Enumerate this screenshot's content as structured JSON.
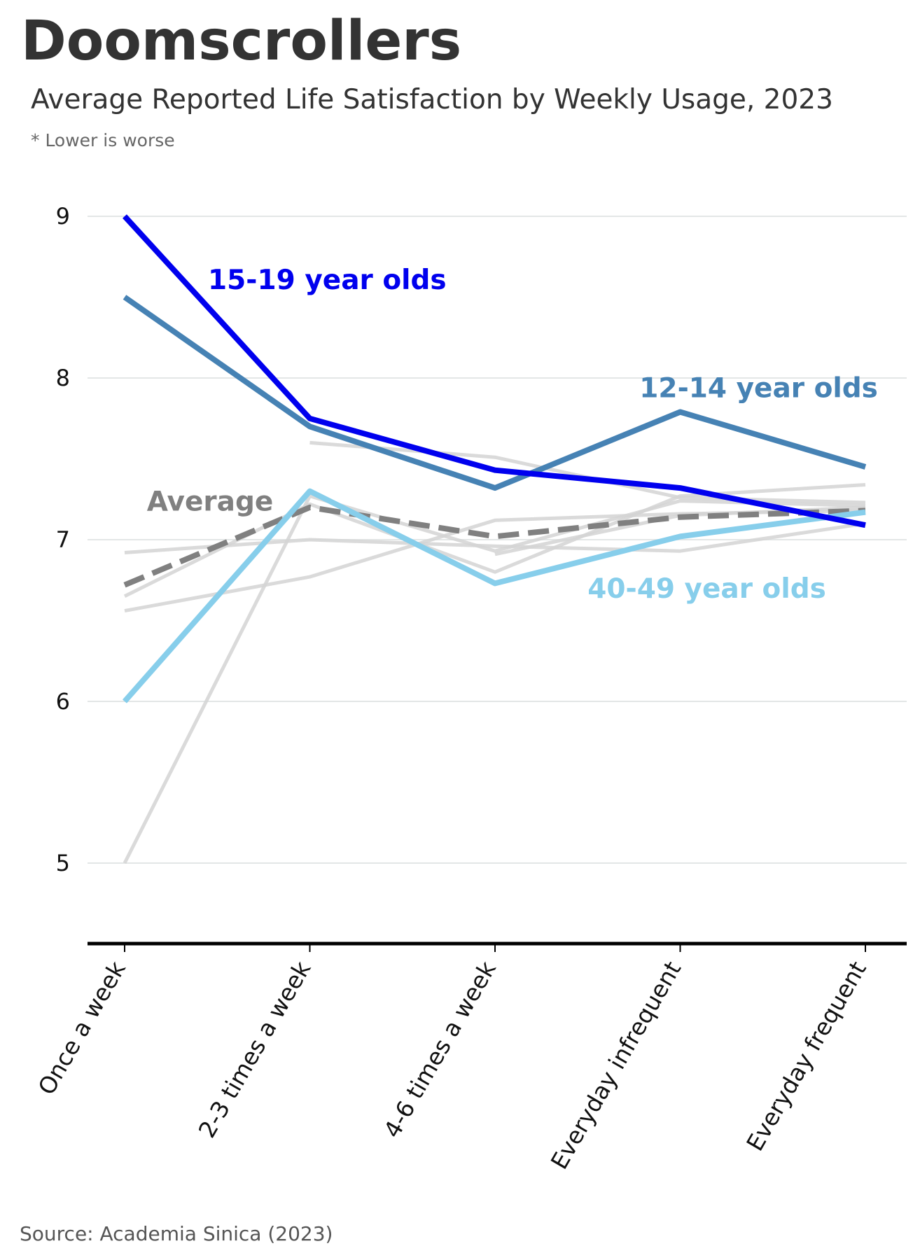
{
  "title": "Doomscrollers",
  "subtitle": "Average Reported Life Satisfaction by Weekly Usage, 2023",
  "note": "* Lower is worse",
  "source": "Source: Academia Sinica (2023)",
  "chart_data": {
    "type": "line",
    "categories": [
      "Once a week",
      "2-3 times a week",
      "4-6 times a week",
      "Everyday infrequent",
      "Everyday frequent"
    ],
    "ylim": [
      4.5,
      9.0
    ],
    "yticks": [
      5,
      6,
      7,
      8,
      9
    ],
    "grid": true,
    "series": [
      {
        "name": "15-19 year olds",
        "values": [
          9.0,
          7.75,
          7.43,
          7.32,
          7.09
        ],
        "color": "#0000ee",
        "style": "highlight"
      },
      {
        "name": "12-14 year olds",
        "values": [
          8.5,
          7.7,
          7.32,
          7.79,
          7.45
        ],
        "color": "#4682b4",
        "style": "highlight"
      },
      {
        "name": "40-49 year olds",
        "values": [
          6.0,
          7.3,
          6.73,
          7.02,
          7.17
        ],
        "color": "#87ceeb",
        "style": "highlight"
      },
      {
        "name": "Average",
        "values": [
          6.72,
          7.2,
          7.02,
          7.14,
          7.18
        ],
        "color": "#808080",
        "style": "dashed"
      },
      {
        "values": [
          5.0,
          7.27,
          6.93,
          7.24,
          7.21
        ],
        "color": "#d3d3d3",
        "style": "background"
      },
      {
        "values": [
          6.92,
          7.0,
          6.96,
          6.93,
          7.1
        ],
        "color": "#d3d3d3",
        "style": "background"
      },
      {
        "values": [
          6.56,
          6.77,
          7.12,
          7.16,
          7.18
        ],
        "color": "#d3d3d3",
        "style": "background"
      },
      {
        "values": [
          6.65,
          7.22,
          6.8,
          7.27,
          7.34
        ],
        "color": "#d3d3d3",
        "style": "background"
      },
      {
        "values": [
          null,
          7.6,
          7.51,
          7.26,
          7.23
        ],
        "color": "#d3d3d3",
        "style": "background"
      },
      {
        "values": [
          null,
          null,
          6.91,
          7.15,
          7.2
        ],
        "color": "#d3d3d3",
        "style": "background"
      }
    ],
    "labels": [
      {
        "text": "15-19 year olds",
        "color": "#0000ee",
        "anchor_category": 0.45,
        "anchor_value": 8.55,
        "align": "start"
      },
      {
        "text": "12-14 year olds",
        "color": "#4682b4",
        "anchor_category": 2.78,
        "anchor_value": 7.88,
        "align": "start"
      },
      {
        "text": "40-49 year olds",
        "color": "#87ceeb",
        "anchor_category": 2.5,
        "anchor_value": 6.64,
        "align": "start"
      },
      {
        "text": "Average",
        "color": "#808080",
        "anchor_category": 0.12,
        "anchor_value": 7.18,
        "align": "start"
      }
    ]
  }
}
